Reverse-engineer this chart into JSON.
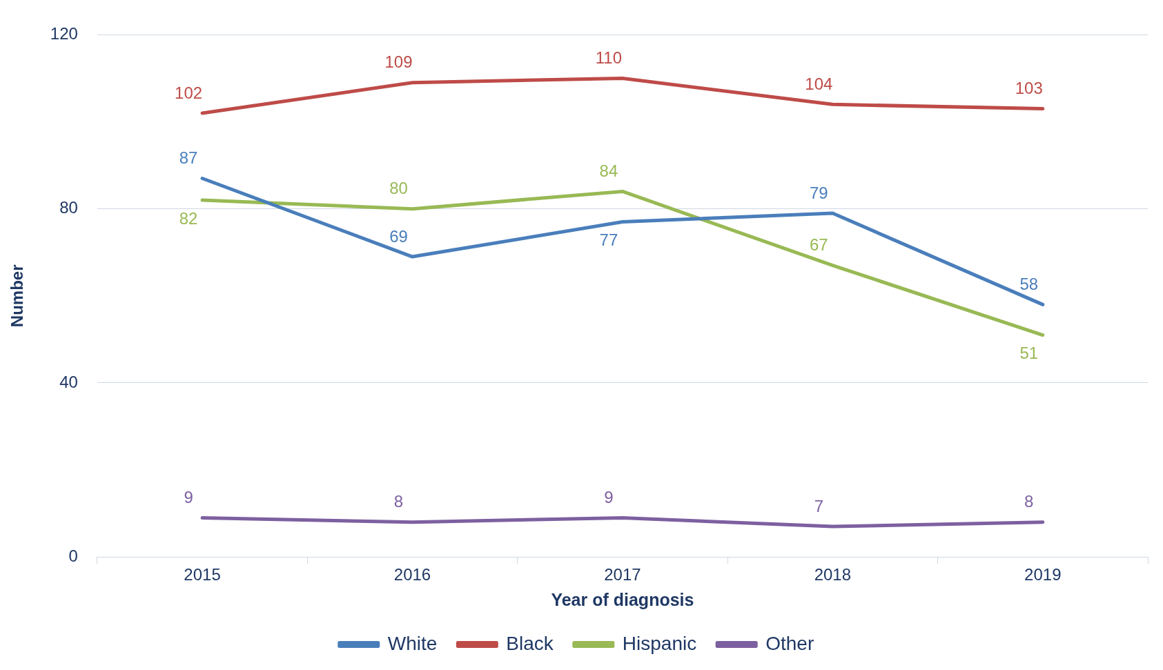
{
  "chart_data": {
    "type": "line",
    "xlabel": "Year of diagnosis",
    "ylabel": "Number",
    "categories": [
      "2015",
      "2016",
      "2017",
      "2018",
      "2019"
    ],
    "series": [
      {
        "name": "White",
        "color": "#4a7ebb",
        "values": [
          87,
          69,
          77,
          79,
          58
        ]
      },
      {
        "name": "Black",
        "color": "#be4b48",
        "values": [
          102,
          109,
          110,
          104,
          103
        ]
      },
      {
        "name": "Hispanic",
        "color": "#98b954",
        "values": [
          82,
          80,
          84,
          67,
          51
        ]
      },
      {
        "name": "Other",
        "color": "#7d60a0",
        "values": [
          9,
          8,
          9,
          7,
          8
        ]
      }
    ],
    "ylim": [
      0,
      120
    ],
    "yticks": [
      0,
      40,
      80,
      120
    ],
    "grid": "y",
    "legend": "bottom",
    "marker": "none",
    "line_style": "solid",
    "data_labels": true
  }
}
